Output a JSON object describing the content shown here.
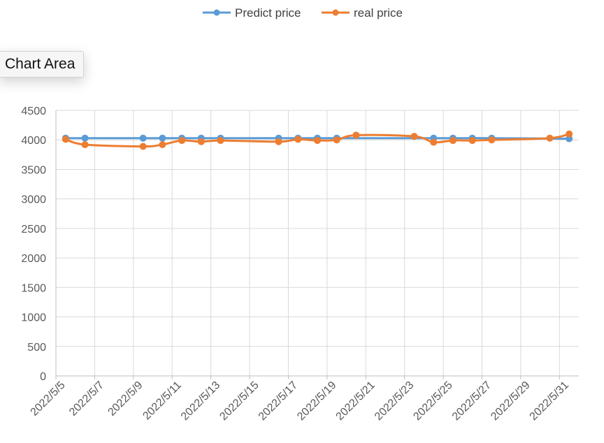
{
  "chart_data": {
    "type": "line",
    "title": "",
    "xlabel": "",
    "ylabel": "",
    "ylim": [
      0,
      4500
    ],
    "y_ticks": [
      "0",
      "500",
      "1000",
      "1500",
      "2000",
      "2500",
      "3000",
      "3500",
      "4000",
      "4500"
    ],
    "x_range": [
      "2022/5/5",
      "2022/5/31"
    ],
    "x_tick_labels": [
      "2022/5/5",
      "2022/5/7",
      "2022/5/9",
      "2022/5/11",
      "2022/5/13",
      "2022/5/15",
      "2022/5/17",
      "2022/5/19",
      "2022/5/21",
      "2022/5/23",
      "2022/5/25",
      "2022/5/27",
      "2022/5/29",
      "2022/5/31"
    ],
    "grid": true,
    "legend_position": "top",
    "smoothed": true,
    "series": [
      {
        "name": "Predict price",
        "color": "#5B9BD5",
        "points": [
          {
            "x": "2022/5/5",
            "y": 4030
          },
          {
            "x": "2022/5/6",
            "y": 4030
          },
          {
            "x": "2022/5/9",
            "y": 4030
          },
          {
            "x": "2022/5/10",
            "y": 4030
          },
          {
            "x": "2022/5/11",
            "y": 4030
          },
          {
            "x": "2022/5/12",
            "y": 4030
          },
          {
            "x": "2022/5/13",
            "y": 4030
          },
          {
            "x": "2022/5/16",
            "y": 4030
          },
          {
            "x": "2022/5/17",
            "y": 4030
          },
          {
            "x": "2022/5/18",
            "y": 4030
          },
          {
            "x": "2022/5/19",
            "y": 4030
          },
          {
            "x": "2022/5/24",
            "y": 4030
          },
          {
            "x": "2022/5/25",
            "y": 4030
          },
          {
            "x": "2022/5/26",
            "y": 4030
          },
          {
            "x": "2022/5/27",
            "y": 4030
          },
          {
            "x": "2022/5/31",
            "y": 4020
          }
        ]
      },
      {
        "name": "real price",
        "color": "#ED7D31",
        "points": [
          {
            "x": "2022/5/5",
            "y": 4010
          },
          {
            "x": "2022/5/6",
            "y": 3920
          },
          {
            "x": "2022/5/9",
            "y": 3890
          },
          {
            "x": "2022/5/10",
            "y": 3920
          },
          {
            "x": "2022/5/11",
            "y": 3990
          },
          {
            "x": "2022/5/12",
            "y": 3970
          },
          {
            "x": "2022/5/13",
            "y": 3990
          },
          {
            "x": "2022/5/16",
            "y": 3970
          },
          {
            "x": "2022/5/17",
            "y": 4010
          },
          {
            "x": "2022/5/18",
            "y": 3990
          },
          {
            "x": "2022/5/19",
            "y": 4000
          },
          {
            "x": "2022/5/20",
            "y": 4080
          },
          {
            "x": "2022/5/23",
            "y": 4060
          },
          {
            "x": "2022/5/24",
            "y": 3960
          },
          {
            "x": "2022/5/25",
            "y": 3990
          },
          {
            "x": "2022/5/26",
            "y": 3990
          },
          {
            "x": "2022/5/27",
            "y": 4000
          },
          {
            "x": "2022/5/30",
            "y": 4030
          },
          {
            "x": "2022/5/31",
            "y": 4100
          }
        ]
      }
    ]
  },
  "tooltip": {
    "text": "Chart Area"
  }
}
